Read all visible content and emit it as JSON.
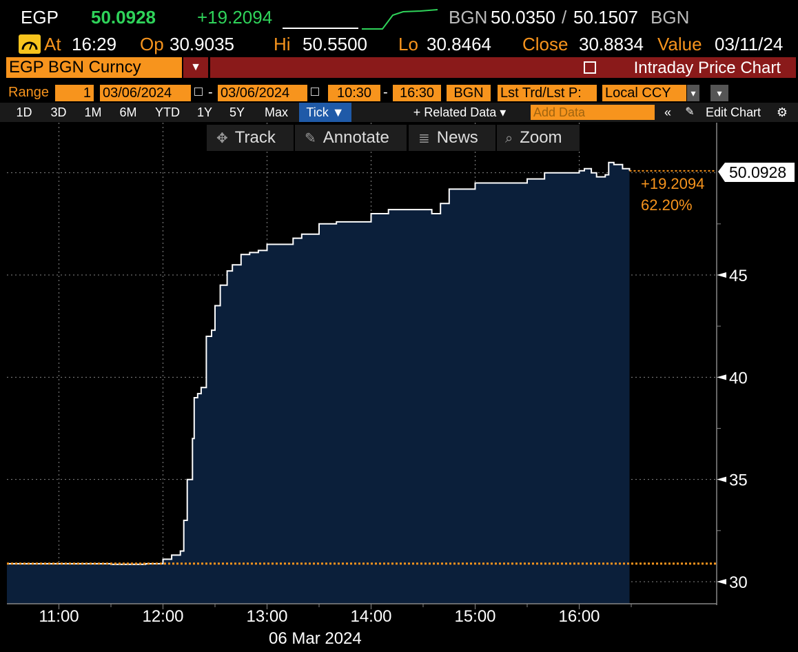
{
  "quote": {
    "ticker": "EGP",
    "last": "50.0928",
    "change": "+19.2094",
    "quote_ccy": "BGN",
    "bid": "50.0350",
    "separator": "/",
    "ask": "50.1507",
    "ask_ccy": "BGN"
  },
  "stats": {
    "at_label": "At",
    "at_value": "16:29",
    "op_label": "Op",
    "op_value": "30.9035",
    "hi_label": "Hi",
    "hi_value": "50.5500",
    "lo_label": "Lo",
    "lo_value": "30.8464",
    "close_label": "Close",
    "close_value": "30.8834",
    "value_label": "Value",
    "value_date": "03/11/24"
  },
  "titlebar": {
    "security": "EGP BGN Curncy",
    "dropdown": "▼",
    "chart_title": "Intraday Price Chart"
  },
  "range": {
    "label": "Range",
    "count": "1",
    "start_date": "03/06/2024",
    "dash": "-",
    "end_date": "03/06/2024",
    "start_time": "10:30",
    "end_time": "16:30",
    "currency": "BGN",
    "field": "Lst Trd/Lst P:",
    "ccy_mode": "Local CCY"
  },
  "periods": {
    "items": [
      "1D",
      "3D",
      "1M",
      "6M",
      "YTD",
      "1Y",
      "5Y",
      "Max"
    ],
    "tick": "Tick ▼",
    "related": "+ Related Data ▾",
    "add_data_placeholder": "Add Data",
    "collapse": "«",
    "edit_chart": "Edit Chart",
    "gear": "⚙"
  },
  "toolbar": {
    "track": "Track",
    "annotate": "Annotate",
    "news": "News",
    "zoom": "Zoom"
  },
  "colors": {
    "accent_orange": "#f7941d",
    "fill": "#0b1f3a",
    "line": "#ffffff",
    "green": "#2fd35a",
    "title_red": "#8a1a1a"
  },
  "chart_data": {
    "type": "area",
    "x_label_date": "06 Mar 2024",
    "x_ticks": [
      "11:00",
      "12:00",
      "13:00",
      "14:00",
      "15:00",
      "16:00"
    ],
    "y_ticks": [
      30,
      35,
      40,
      45
    ],
    "ylim": [
      29,
      52
    ],
    "grid": true,
    "last_label": "50.0928",
    "change_label": "+19.2094",
    "pct_label": "62.20%",
    "reference_value": 30.8834,
    "last_value": 50.0928,
    "series": [
      {
        "x": [
          "10:30",
          "11:00",
          "11:30",
          "11:50",
          "12:00",
          "12:05",
          "12:10",
          "12:12",
          "12:14",
          "12:17",
          "12:18",
          "12:20",
          "12:22",
          "12:25",
          "12:28",
          "12:30",
          "12:33",
          "12:37",
          "12:40",
          "12:45",
          "12:50",
          "12:55",
          "13:00",
          "13:15",
          "13:20",
          "13:30",
          "13:40",
          "14:00",
          "14:10",
          "14:30",
          "14:35",
          "14:40",
          "14:45",
          "15:00",
          "15:20",
          "15:30",
          "15:40",
          "16:00",
          "16:03",
          "16:07",
          "16:10",
          "16:15",
          "16:17",
          "16:20",
          "16:25",
          "16:29"
        ],
        "y": [
          30.88,
          30.88,
          30.85,
          30.88,
          31.1,
          31.3,
          31.5,
          33.0,
          35.0,
          37.0,
          39.0,
          39.2,
          39.5,
          42.0,
          42.3,
          43.5,
          44.5,
          45.2,
          45.5,
          46.0,
          46.1,
          46.2,
          46.5,
          46.8,
          47.0,
          47.5,
          47.6,
          48.0,
          48.2,
          48.2,
          48.0,
          48.5,
          49.2,
          49.5,
          49.5,
          49.7,
          50.0,
          50.1,
          50.2,
          50.0,
          49.8,
          49.9,
          50.5,
          50.4,
          50.2,
          50.0928
        ]
      }
    ]
  }
}
